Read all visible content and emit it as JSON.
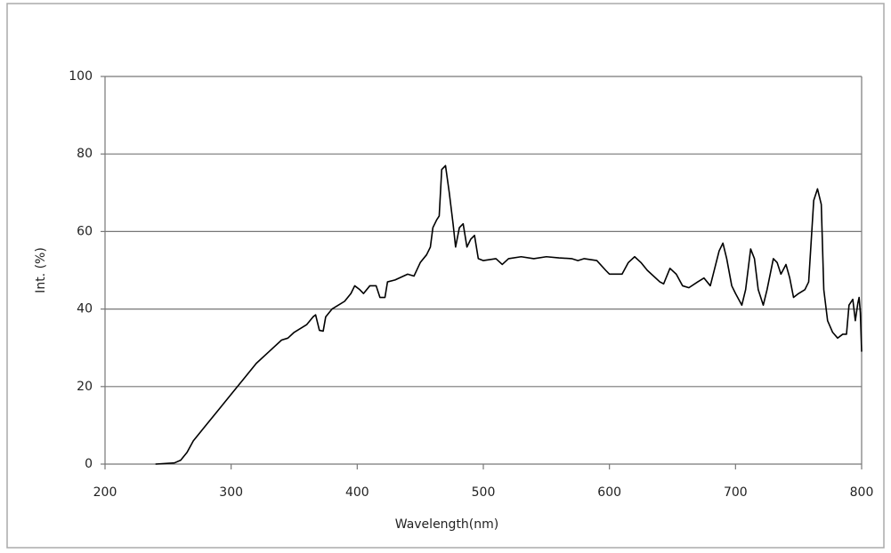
{
  "chart_data": {
    "type": "line",
    "xlabel": "Wavelength(nm)",
    "ylabel": "Int. (%)",
    "x": [
      240,
      255,
      260,
      265,
      270,
      280,
      290,
      300,
      310,
      320,
      330,
      340,
      345,
      350,
      360,
      365,
      367,
      370,
      373,
      375,
      380,
      390,
      395,
      398,
      402,
      405,
      410,
      415,
      418,
      422,
      424,
      430,
      440,
      445,
      450,
      455,
      458,
      460,
      463,
      465,
      467,
      470,
      473,
      476,
      478,
      481,
      484,
      487,
      490,
      493,
      496,
      500,
      510,
      515,
      520,
      530,
      540,
      550,
      560,
      570,
      575,
      580,
      590,
      597,
      600,
      610,
      615,
      620,
      625,
      630,
      640,
      643,
      648,
      653,
      658,
      663,
      670,
      675,
      680,
      687,
      690,
      693,
      697,
      700,
      705,
      708,
      712,
      715,
      718,
      722,
      725,
      730,
      733,
      736,
      740,
      743,
      746,
      750,
      755,
      758,
      762,
      765,
      768,
      770,
      773,
      777,
      781,
      785,
      788,
      790,
      793,
      795,
      797,
      798,
      799,
      800
    ],
    "values": [
      0,
      0.3,
      1,
      3,
      6,
      10,
      14,
      18,
      22,
      26,
      29,
      32,
      32.5,
      34,
      36,
      38,
      38.5,
      34.5,
      34.3,
      38,
      40,
      42,
      44,
      46,
      45,
      44,
      46,
      46,
      43,
      43,
      47,
      47.5,
      49,
      48.5,
      52,
      54,
      56,
      61,
      63,
      64,
      76,
      77,
      70,
      62,
      56,
      61,
      62,
      56,
      58,
      59,
      53,
      52.5,
      53,
      51.5,
      53,
      53.5,
      53,
      53.5,
      53.2,
      53,
      52.5,
      53,
      52.5,
      50,
      49,
      49,
      52,
      53.5,
      52,
      50,
      47,
      46.5,
      50.5,
      49,
      46,
      45.5,
      47,
      48,
      46,
      55,
      57,
      53,
      46,
      44,
      41,
      45,
      55.5,
      53,
      45,
      41,
      45,
      53,
      52,
      49,
      51.5,
      48,
      43,
      44,
      45,
      47,
      68,
      71,
      67,
      45,
      37,
      34,
      32.5,
      33.5,
      33.5,
      41,
      42.5,
      37,
      41.5,
      43,
      39,
      29
    ],
    "color": "#000000",
    "xlim": [
      200,
      800
    ],
    "xticks": [
      200,
      300,
      400,
      500,
      600,
      700,
      800
    ],
    "ylim": [
      0,
      100
    ],
    "yticks": [
      0,
      20,
      40,
      60,
      80,
      100
    ],
    "grid": true
  }
}
